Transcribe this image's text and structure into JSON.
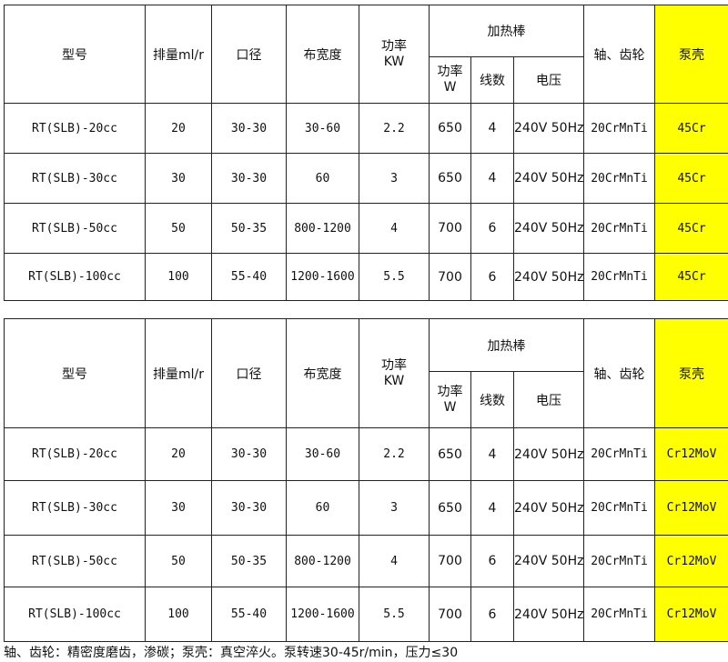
{
  "header": {
    "model": "型号",
    "displacement": "排量ml/r",
    "caliber": "口径",
    "cloth_width": "布宽度",
    "power_kw": "功率KW",
    "heater": "加热棒",
    "heater_power": "功率W",
    "wires": "线数",
    "voltage": "电压",
    "shaft_gear": "轴、齿轮",
    "pump_shell": "泵壳"
  },
  "tables": [
    {
      "rows": [
        [
          "RT(SLB)-20cc",
          "20",
          "30-30",
          "30-60",
          "2.2",
          "650",
          "4",
          "240V 50Hz",
          "20CrMnTi",
          "45Cr"
        ],
        [
          "RT(SLB)-30cc",
          "30",
          "30-30",
          "60",
          "3",
          "650",
          "4",
          "240V 50Hz",
          "20CrMnTi",
          "45Cr"
        ],
        [
          "RT(SLB)-50cc",
          "50",
          "50-35",
          "800-1200",
          "4",
          "700",
          "6",
          "240V 50Hz",
          "20CrMnTi",
          "45Cr"
        ],
        [
          "RT(SLB)-100cc",
          "100",
          "55-40",
          "1200-1600",
          "5.5",
          "700",
          "6",
          "240V 50Hz",
          "20CrMnTi",
          "45Cr"
        ]
      ]
    },
    {
      "rows": [
        [
          "RT(SLB)-20cc",
          "20",
          "30-30",
          "30-60",
          "2.2",
          "650",
          "4",
          "240V 50Hz",
          "20CrMnTi",
          "Cr12MoV"
        ],
        [
          "RT(SLB)-30cc",
          "30",
          "30-30",
          "60",
          "3",
          "650",
          "4",
          "240V 50Hz",
          "20CrMnTi",
          "Cr12MoV"
        ],
        [
          "RT(SLB)-50cc",
          "50",
          "50-35",
          "800-1200",
          "4",
          "700",
          "6",
          "240V 50Hz",
          "20CrMnTi",
          "Cr12MoV"
        ],
        [
          "RT(SLB)-100cc",
          "100",
          "55-40",
          "1200-1600",
          "5.5",
          "700",
          "6",
          "240V 50Hz",
          "20CrMnTi",
          "Cr12MoV"
        ]
      ]
    }
  ],
  "highlight_color": "#ffff00",
  "footer": "轴、齿轮：精密度磨齿，渗碳；泵壳：真空淬火。泵转速30-45r/min，压力≤30"
}
